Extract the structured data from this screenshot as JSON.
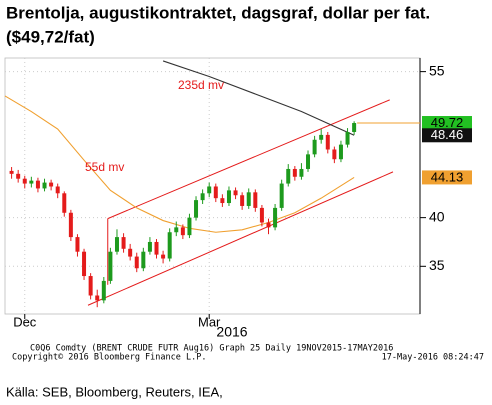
{
  "chart_data": {
    "type": "candlestick",
    "title": "Brentolja, augustikontraktet, dagsgraf, dollar per fat.",
    "subtitle": "($49,72/fat)",
    "x": [
      0,
      1,
      2,
      3,
      4,
      5,
      6,
      7,
      8,
      9,
      10,
      11,
      12,
      13,
      14,
      15,
      16,
      17,
      18,
      19,
      20,
      21,
      22,
      23,
      24,
      25,
      26,
      27,
      28,
      29,
      30,
      31,
      32,
      33,
      34,
      35,
      36,
      37,
      38,
      39,
      40,
      41,
      42,
      43,
      44,
      45,
      46,
      47,
      48,
      49,
      50,
      51,
      52
    ],
    "open": [
      44.8,
      44.5,
      44.0,
      43.5,
      43.8,
      43.0,
      43.6,
      43.2,
      42.5,
      40.5,
      38.0,
      36.5,
      34.0,
      32.0,
      31.5,
      33.5,
      36.5,
      38.0,
      36.8,
      36.0,
      34.8,
      36.5,
      37.5,
      36.2,
      35.8,
      38.5,
      39.0,
      38.2,
      40.0,
      41.8,
      42.5,
      43.2,
      42.0,
      41.5,
      42.8,
      42.3,
      41.2,
      42.6,
      41.0,
      39.5,
      39.0,
      41.0,
      43.5,
      45.0,
      44.2,
      45.0,
      46.5,
      48.0,
      48.5,
      47.0,
      46.0,
      47.5,
      48.8
    ],
    "high": [
      45.2,
      44.9,
      44.3,
      44.2,
      44.1,
      44.0,
      43.9,
      43.5,
      42.7,
      40.8,
      38.3,
      36.8,
      34.3,
      32.6,
      33.9,
      36.9,
      38.8,
      38.4,
      37.3,
      36.4,
      36.9,
      38.0,
      37.8,
      36.6,
      38.9,
      39.6,
      39.3,
      40.4,
      42.2,
      42.9,
      43.6,
      43.5,
      42.4,
      43.2,
      43.1,
      42.6,
      43.0,
      42.9,
      41.3,
      39.9,
      41.4,
      43.9,
      45.5,
      45.3,
      45.6,
      46.9,
      48.4,
      49.1,
      48.8,
      47.3,
      47.9,
      49.2,
      49.9
    ],
    "low": [
      44.0,
      43.6,
      43.0,
      43.1,
      42.6,
      42.7,
      42.8,
      42.0,
      40.1,
      37.6,
      36.0,
      33.6,
      31.6,
      30.8,
      31.2,
      33.2,
      36.2,
      36.4,
      35.6,
      34.4,
      34.5,
      36.2,
      35.8,
      35.3,
      35.5,
      38.1,
      37.8,
      37.9,
      39.7,
      41.4,
      42.1,
      41.6,
      41.1,
      41.2,
      41.9,
      40.8,
      40.9,
      40.6,
      39.1,
      38.3,
      38.7,
      40.7,
      43.2,
      43.8,
      43.9,
      44.7,
      46.2,
      47.6,
      46.6,
      45.6,
      45.7,
      47.2,
      48.5
    ],
    "close": [
      44.5,
      44.0,
      43.5,
      43.8,
      43.0,
      43.6,
      43.2,
      42.5,
      40.5,
      38.0,
      36.5,
      34.0,
      32.0,
      31.5,
      33.5,
      36.5,
      38.0,
      36.8,
      36.0,
      34.8,
      36.5,
      37.5,
      36.2,
      35.8,
      38.5,
      39.0,
      38.2,
      40.0,
      41.8,
      42.5,
      43.2,
      42.0,
      41.5,
      42.8,
      42.3,
      41.2,
      42.6,
      41.0,
      39.5,
      39.0,
      41.0,
      43.5,
      45.0,
      44.2,
      45.0,
      46.5,
      48.0,
      48.5,
      47.0,
      46.0,
      47.5,
      48.8,
      49.72
    ],
    "up_color": "#1d9a1d",
    "down_color": "#e41b1b",
    "moving_averages": [
      {
        "name": "55d mv",
        "color": "#f0a030",
        "x": [
          -1,
          3,
          7,
          11,
          15,
          19,
          23,
          27,
          31,
          35,
          39,
          43,
          47,
          52
        ],
        "values": [
          52.5,
          50.9,
          49.1,
          45.9,
          42.8,
          41.0,
          39.7,
          38.9,
          38.5,
          38.75,
          39.5,
          40.5,
          42.0,
          44.13
        ]
      },
      {
        "name": "235d mv",
        "color": "#333333",
        "x": [
          23,
          30,
          37,
          44,
          52
        ],
        "values": [
          56.1,
          54.5,
          52.7,
          50.9,
          48.46
        ]
      }
    ],
    "channel": {
      "color": "#e41b1b",
      "lines": [
        {
          "x": [
            14.6,
            57.4
          ],
          "values": [
            39.9,
            52.1
          ]
        },
        {
          "x": [
            11.6,
            57.9
          ],
          "values": [
            31.0,
            44.7
          ]
        },
        {
          "x": [
            14.6,
            14.6
          ],
          "values": [
            39.9,
            33.1
          ]
        }
      ]
    },
    "last_values": [
      {
        "label": "49.72",
        "value": 49.72,
        "color": "#22c022",
        "text_color": "#000000"
      },
      {
        "label": "48.46",
        "value": 48.46,
        "color": "#111111",
        "text_color": "#ffffff"
      },
      {
        "label": "44.13",
        "value": 44.13,
        "color": "#f0a030",
        "text_color": "#000000"
      }
    ],
    "last_line_color": "#f0a030",
    "xlim": [
      -1,
      62
    ],
    "xticks": [
      {
        "value": 2,
        "label": "Dec"
      },
      {
        "value": 30,
        "label": "Mar"
      }
    ],
    "x_year_label": "2016",
    "ylim": [
      30.1,
      56.4
    ],
    "yticks": [
      35,
      40,
      55
    ],
    "grid": true,
    "footer": [
      "C0Q6 Comdty (BRENT CRUDE FUTR  Aug16) Graph 25  Daily 19NOV2015-17MAY2016",
      "Copyright© 2016 Bloomberg Finance L.P.",
      "17-May-2016 08:24:47"
    ],
    "source": "Källa: SEB, Bloomberg, Reuters, IEA,"
  }
}
